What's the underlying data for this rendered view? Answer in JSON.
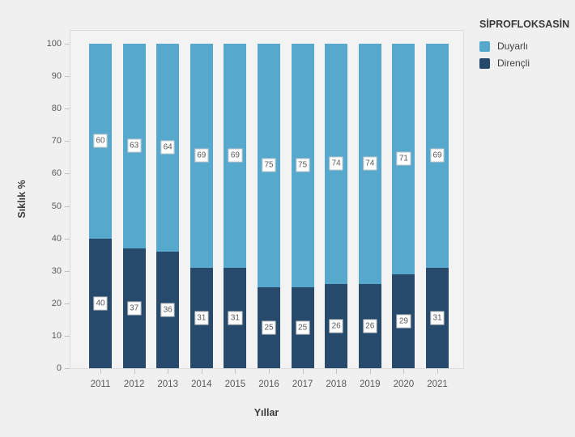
{
  "chart_data": {
    "type": "bar",
    "stacked": true,
    "title": "SİPROFLOKSASİN",
    "xlabel": "Yıllar",
    "ylabel": "Sıklık %",
    "categories": [
      "2011",
      "2012",
      "2013",
      "2014",
      "2015",
      "2016",
      "2017",
      "2018",
      "2019",
      "2020",
      "2021"
    ],
    "series": [
      {
        "name": "Duyarlı",
        "color": "#56A8CC",
        "values": [
          60,
          63,
          64,
          69,
          69,
          75,
          75,
          74,
          74,
          71,
          69
        ]
      },
      {
        "name": "Dirençli",
        "color": "#27496B",
        "values": [
          40,
          37,
          36,
          31,
          31,
          25,
          25,
          26,
          26,
          29,
          31
        ]
      }
    ],
    "stack_order_bottom_to_top": [
      "Dirençli",
      "Duyarlı"
    ],
    "ylim": [
      0,
      100
    ],
    "yticks": [
      0,
      10,
      20,
      30,
      40,
      50,
      60,
      70,
      80,
      90,
      100
    ],
    "grid": false,
    "bar_value_labels": true,
    "legend_position": "outside-top-right"
  },
  "colors": {
    "background": "#F0F0F0",
    "panel_background": "#F3F3F3",
    "panel_border": "#DCDCDC",
    "tick_mark": "#C3C3C3",
    "tick_label_text": "#595959",
    "axis_title_text": "#3D3D3D",
    "value_label_box_background": "#FFFFFF",
    "value_label_box_border": "#C9C9C9",
    "value_label_text": "#595959"
  }
}
